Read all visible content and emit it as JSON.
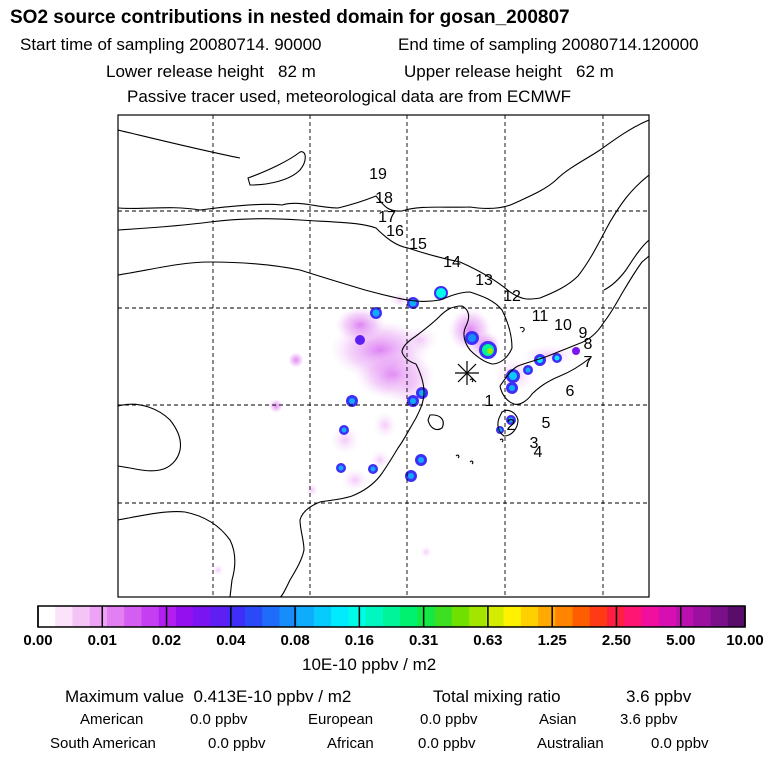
{
  "title": "SO2 source contributions in nested domain for gosan_200807",
  "sampling": {
    "start_label": "Start time of sampling",
    "start_value": "20080714. 90000",
    "end_label": "End time of sampling",
    "end_value": "20080714.120000"
  },
  "release": {
    "lower_label": "Lower release height",
    "lower_value": "82 m",
    "upper_label": "Upper release height",
    "upper_value": "62 m"
  },
  "note": "Passive tracer used, meteorological data are from ECMWF",
  "chart_data": {
    "type": "heatmap",
    "title": "SO2 source contributions in nested domain for gosan_200807",
    "map": "East Asia nested domain with coastlines, dashed lat/lon grid",
    "receptor": "Gosan (marked with asterisk)",
    "trajectory_labels": [
      "1",
      "2",
      "3",
      "4",
      "5",
      "6",
      "7",
      "8",
      "9",
      "10",
      "11",
      "12",
      "13",
      "14",
      "15",
      "16",
      "17",
      "18",
      "19"
    ],
    "colorbar": {
      "ticks": [
        "0.00",
        "0.01",
        "0.02",
        "0.04",
        "0.08",
        "0.16",
        "0.31",
        "0.63",
        "1.25",
        "2.50",
        "5.00",
        "10.00"
      ],
      "units": "10E-10 ppbv / m2",
      "colors": [
        "#ffffff",
        "#fbe3fb",
        "#f5c4f7",
        "#eda2f5",
        "#e27ff3",
        "#d45ef2",
        "#c63ef2",
        "#b21ef0",
        "#9410ef",
        "#7a14f0",
        "#5e1ff3",
        "#3f2ff6",
        "#2a4af8",
        "#1f6bfa",
        "#178cfb",
        "#10acfc",
        "#08cbfd",
        "#00ecfe",
        "#00fbe7",
        "#00f8c0",
        "#00f59a",
        "#00f070",
        "#14e845",
        "#3de020",
        "#6fe000",
        "#a2e600",
        "#d3ec00",
        "#fff200",
        "#ffd000",
        "#ffaa00",
        "#ff8500",
        "#ff5e00",
        "#ff3a14",
        "#ff1f40",
        "#ff1572",
        "#f10fa0",
        "#d60fb0",
        "#bb10b0",
        "#9c10a0",
        "#7c0f8a",
        "#5a0c6b"
      ]
    }
  },
  "stats": {
    "max_label": "Maximum value",
    "max_value": "0.413E-10 ppbv / m2",
    "total_label": "Total mixing ratio",
    "total_value": "3.6 ppbv",
    "regions": [
      {
        "name": "American",
        "value": "0.0 ppbv"
      },
      {
        "name": "European",
        "value": "0.0 ppbv"
      },
      {
        "name": "Asian",
        "value": "3.6 ppbv"
      },
      {
        "name": "South American",
        "value": "0.0 ppbv"
      },
      {
        "name": "African",
        "value": "0.0 ppbv"
      },
      {
        "name": "Australian",
        "value": "0.0 ppbv"
      }
    ]
  }
}
